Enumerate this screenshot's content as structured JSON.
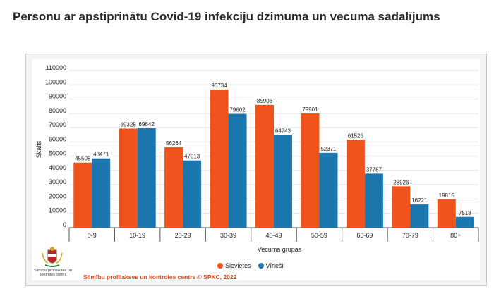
{
  "page": {
    "title": "Personu ar apstiprinātu Covid-19 infekciju dzimuma un vecuma sadalījums",
    "logo_caption": "Slimību profilakses un kontroles centrs",
    "credit": "Slimību profilakses un kontroles centrs © SPKC, 2022"
  },
  "colors": {
    "female": "#f0531c",
    "male": "#1b76ad",
    "grid": "#dddddd",
    "axis": "#555555"
  },
  "chart_data": {
    "type": "bar",
    "title": "",
    "xlabel": "Vecuma grupas",
    "ylabel": "Skaits",
    "categories": [
      "0-9",
      "10-19",
      "20-29",
      "30-39",
      "40-49",
      "50-59",
      "60-69",
      "70-79",
      "80+"
    ],
    "series": [
      {
        "name": "Sievietes",
        "values": [
          45508,
          69325,
          56264,
          96734,
          85906,
          79901,
          61526,
          28926,
          19815
        ]
      },
      {
        "name": "Vīrieši",
        "values": [
          48471,
          69642,
          47013,
          79602,
          64743,
          52371,
          37787,
          16221,
          7518
        ]
      }
    ],
    "ylim": [
      0,
      110000
    ],
    "yticks": [
      0,
      10000,
      20000,
      30000,
      40000,
      50000,
      60000,
      70000,
      80000,
      90000,
      100000,
      110000
    ],
    "grid": true,
    "legend": "bottom-center"
  }
}
